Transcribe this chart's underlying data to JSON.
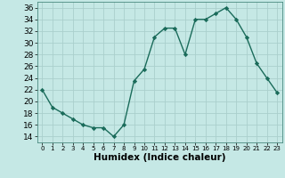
{
  "x": [
    0,
    1,
    2,
    3,
    4,
    5,
    6,
    7,
    8,
    9,
    10,
    11,
    12,
    13,
    14,
    15,
    16,
    17,
    18,
    19,
    20,
    21,
    22,
    23
  ],
  "y": [
    22,
    19,
    18,
    17,
    16,
    15.5,
    15.5,
    14,
    16,
    23.5,
    25.5,
    31,
    32.5,
    32.5,
    28,
    34,
    34,
    35,
    36,
    34,
    31,
    26.5,
    24,
    21.5
  ],
  "line_color": "#1a6b5a",
  "marker": "D",
  "marker_size": 2.2,
  "bg_color": "#c5e8e5",
  "grid_color": "#aacfcc",
  "xlabel": "Humidex (Indice chaleur)",
  "xlabel_fontsize": 7.5,
  "ytick_min": 14,
  "ytick_max": 36,
  "ytick_step": 2,
  "xtick_labels": [
    "0",
    "1",
    "2",
    "3",
    "4",
    "5",
    "6",
    "7",
    "8",
    "9",
    "10",
    "11",
    "12",
    "13",
    "14",
    "15",
    "16",
    "17",
    "18",
    "19",
    "20",
    "21",
    "22",
    "23"
  ],
  "ylim": [
    13,
    37
  ],
  "xlim": [
    -0.5,
    23.5
  ],
  "ytick_fontsize": 6.5,
  "xtick_fontsize": 5.0,
  "linewidth": 1.0
}
